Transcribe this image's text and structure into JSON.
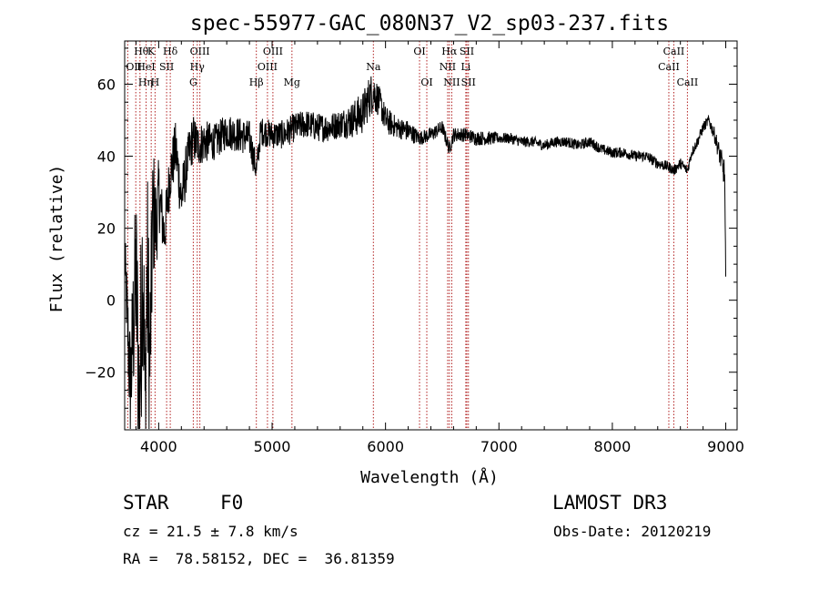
{
  "chart_data": {
    "type": "line",
    "title": "spec-55977-GAC_080N37_V2_sp03-237.fits",
    "xlabel": "Wavelength (Å)",
    "ylabel": "Flux (relative)",
    "xlim": [
      3700,
      9100
    ],
    "ylim": [
      -36,
      72
    ],
    "x_ticks": [
      4000,
      5000,
      6000,
      7000,
      8000,
      9000
    ],
    "y_ticks": [
      -20,
      0,
      20,
      40,
      60
    ],
    "x_tick_labels": [
      "4000",
      "5000",
      "6000",
      "7000",
      "8000",
      "9000"
    ],
    "y_tick_labels": [
      "−20",
      "0",
      "20",
      "40",
      "60"
    ],
    "grid": false,
    "series": [
      {
        "color": "#000000",
        "x": [
          3700,
          3750,
          3800,
          3830,
          3860,
          3880,
          3900,
          3920,
          3950,
          3980,
          4000,
          4050,
          4100,
          4150,
          4200,
          4250,
          4300,
          4350,
          4400,
          4500,
          4600,
          4700,
          4800,
          4862,
          4900,
          5000,
          5100,
          5200,
          5300,
          5400,
          5500,
          5600,
          5700,
          5800,
          5850,
          5890,
          5950,
          6000,
          6100,
          6200,
          6300,
          6400,
          6500,
          6563,
          6600,
          6700,
          6800,
          6900,
          7000,
          7100,
          7200,
          7300,
          7400,
          7500,
          7600,
          7700,
          7800,
          7900,
          8000,
          8100,
          8200,
          8300,
          8400,
          8500,
          8542,
          8600,
          8662,
          8700,
          8750,
          8800,
          8850,
          8900,
          8950,
          8990,
          9000
        ],
        "y": [
          12,
          -25,
          8,
          -30,
          15,
          -32,
          10,
          -20,
          25,
          20,
          30,
          18,
          35,
          42,
          28,
          38,
          45,
          43,
          44,
          44,
          47,
          46,
          45,
          36,
          47,
          46,
          46,
          48,
          49,
          48,
          48,
          49,
          50,
          52,
          56,
          58,
          55,
          50,
          48,
          47,
          45,
          46,
          48,
          42,
          46,
          46,
          45,
          45,
          45,
          45,
          44,
          44,
          43,
          44,
          44,
          43,
          44,
          42,
          41,
          41,
          40,
          40,
          38,
          37,
          36,
          38,
          36,
          41,
          44,
          48,
          50,
          46,
          40,
          35,
          5
        ],
        "noise": [
          8,
          18,
          25,
          30,
          30,
          30,
          30,
          25,
          20,
          12,
          10,
          8,
          8,
          8,
          8,
          7,
          7,
          6,
          6,
          5,
          5,
          5,
          5,
          4,
          4,
          4,
          4,
          4,
          4,
          4,
          4,
          4,
          5,
          6,
          6,
          6,
          4,
          4,
          3,
          3,
          2,
          2,
          2,
          2,
          2,
          2,
          2,
          2,
          1.5,
          1.5,
          1.5,
          1.5,
          1.5,
          1.5,
          1.5,
          1.5,
          1.5,
          1.5,
          1.5,
          1.5,
          1.5,
          1.5,
          1.5,
          1.5,
          1.5,
          1.5,
          1.5,
          1.5,
          1.5,
          1.5,
          1.5,
          2,
          3,
          4,
          4
        ]
      }
    ],
    "lines": [
      {
        "label": "Hθ",
        "x": 3798,
        "row": 0,
        "anchor": "start"
      },
      {
        "label": "OII",
        "x": 3727,
        "row": 1,
        "anchor": "start"
      },
      {
        "label": "Hη",
        "x": 3835,
        "row": 2,
        "anchor": "start"
      },
      {
        "label": "K",
        "x": 3934,
        "row": 0,
        "anchor": "middle"
      },
      {
        "label": "HeI",
        "x": 3889,
        "row": 1,
        "anchor": "middle"
      },
      {
        "label": "H",
        "x": 3968,
        "row": 2,
        "anchor": "middle"
      },
      {
        "label": "Hδ",
        "x": 4102,
        "row": 0,
        "anchor": "middle"
      },
      {
        "label": "SII",
        "x": 4070,
        "row": 1,
        "anchor": "middle"
      },
      {
        "label": "OIII",
        "x": 4363,
        "row": 0,
        "anchor": "middle"
      },
      {
        "label": "Hγ",
        "x": 4340,
        "row": 1,
        "anchor": "middle"
      },
      {
        "label": "G",
        "x": 4305,
        "row": 2,
        "anchor": "middle"
      },
      {
        "label": "Hβ",
        "x": 4861,
        "row": 2,
        "anchor": "middle"
      },
      {
        "label": "OIII",
        "x": 5007,
        "row": 0,
        "anchor": "middle"
      },
      {
        "label": "OIII",
        "x": 4959,
        "row": 1,
        "anchor": "middle"
      },
      {
        "label": "Mg",
        "x": 5175,
        "row": 2,
        "anchor": "middle"
      },
      {
        "label": "Na",
        "x": 5893,
        "row": 1,
        "anchor": "middle"
      },
      {
        "label": "OI",
        "x": 6300,
        "row": 0,
        "anchor": "middle"
      },
      {
        "label": "OI",
        "x": 6364,
        "row": 2,
        "anchor": "middle"
      },
      {
        "label": "Hα",
        "x": 6563,
        "row": 0,
        "anchor": "middle"
      },
      {
        "label": "NII",
        "x": 6548,
        "row": 1,
        "anchor": "middle"
      },
      {
        "label": "NII",
        "x": 6584,
        "row": 2,
        "anchor": "middle"
      },
      {
        "label": "SII",
        "x": 6717,
        "row": 0,
        "anchor": "middle"
      },
      {
        "label": "Li",
        "x": 6708,
        "row": 1,
        "anchor": "middle"
      },
      {
        "label": "SII",
        "x": 6731,
        "row": 2,
        "anchor": "middle"
      },
      {
        "label": "CaII",
        "x": 8542,
        "row": 0,
        "anchor": "middle"
      },
      {
        "label": "CaII",
        "x": 8498,
        "row": 1,
        "anchor": "middle"
      },
      {
        "label": "CaII",
        "x": 8662,
        "row": 2,
        "anchor": "middle"
      }
    ]
  },
  "info": {
    "class": "STAR",
    "subclass": "F0",
    "survey": "LAMOST DR3",
    "cz": "cz = 21.5 ± 7.8 km/s",
    "obs_date": "Obs-Date: 20120219",
    "coords": "RA =  78.58152, DEC =  36.81359"
  }
}
